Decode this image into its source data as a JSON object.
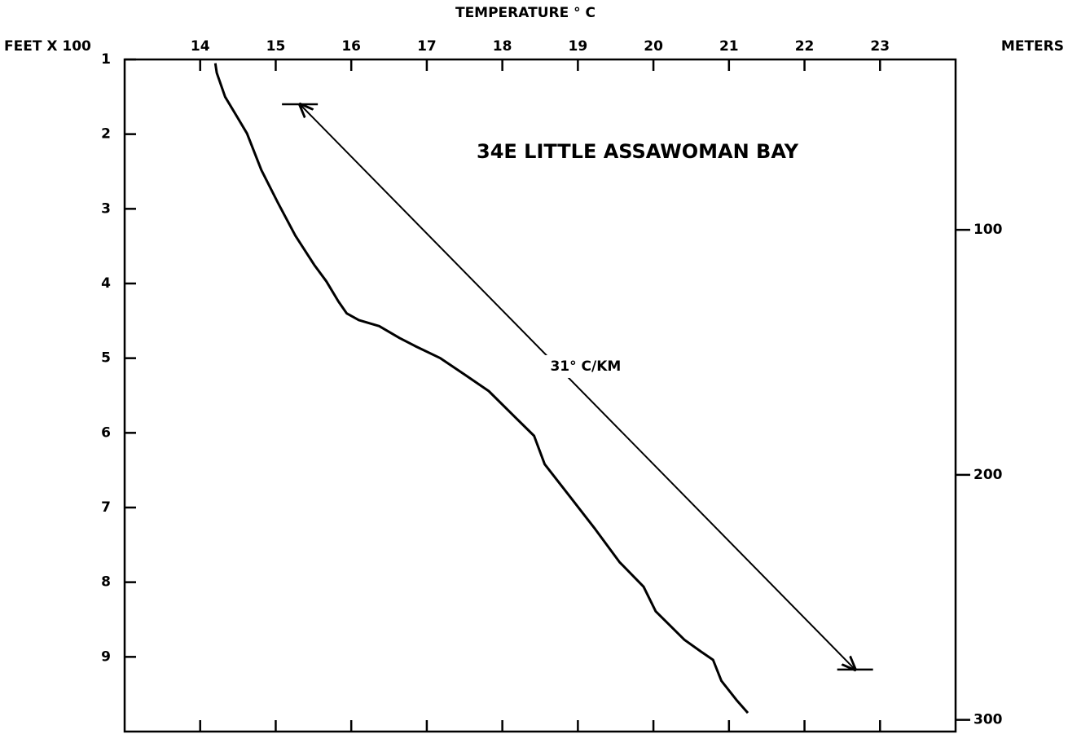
{
  "chart_data": {
    "type": "line",
    "title": "TEMPERATURE ° C",
    "y_label": "FEET X 100",
    "y2_label": "METERS",
    "annotations": [
      "34E LITTLE ASSAWOMAN BAY",
      "31° C/KM"
    ],
    "xlim": [
      13,
      24
    ],
    "xticks": [
      14,
      15,
      16,
      17,
      18,
      19,
      20,
      21,
      22,
      23
    ],
    "ylim": [
      10,
      1
    ],
    "yticks": [
      1,
      2,
      3,
      4,
      5,
      6,
      7,
      8,
      9
    ],
    "y2lim": [
      304.8,
      30.48
    ],
    "y2ticks": [
      100,
      200,
      300
    ],
    "series": [
      {
        "color": "#000000",
        "x": [
          14.2,
          14.22,
          14.33,
          14.49,
          14.62,
          14.81,
          15.03,
          15.26,
          15.51,
          15.67,
          15.83,
          15.94,
          16.1,
          16.37,
          16.64,
          16.85,
          17.18,
          17.5,
          17.82,
          18.15,
          18.42,
          18.56,
          18.9,
          19.23,
          19.55,
          19.87,
          20.03,
          20.41,
          20.63,
          20.79,
          20.9,
          21.11,
          21.25
        ],
        "values": [
          1.05,
          1.18,
          1.5,
          1.77,
          1.99,
          2.48,
          2.92,
          3.36,
          3.75,
          3.97,
          4.24,
          4.4,
          4.49,
          4.57,
          4.73,
          4.84,
          5.0,
          5.22,
          5.44,
          5.77,
          6.04,
          6.42,
          6.86,
          7.29,
          7.73,
          8.06,
          8.39,
          8.77,
          8.93,
          9.04,
          9.32,
          9.59,
          9.75
        ]
      },
      {
        "color": "#000000",
        "style": "arrow",
        "x": [
          15.32,
          22.67
        ],
        "values": [
          1.6,
          9.17
        ]
      }
    ]
  }
}
